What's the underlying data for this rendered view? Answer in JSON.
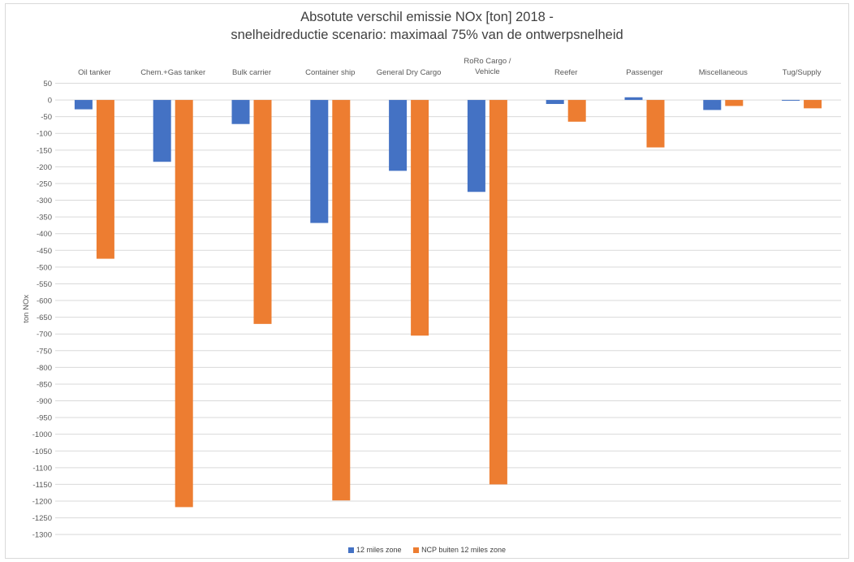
{
  "chart_data": {
    "type": "bar",
    "title_line1": "Absotute verschil emissie NOx [ton] 2018 -",
    "title_line2": "snelheidreductie scenario: maximaal 75% van de ontwerpsnelheid",
    "ylabel": "ton NOx",
    "ylim": [
      -1300,
      50
    ],
    "ytick_step": 50,
    "grid": true,
    "legend_position": "bottom",
    "categories": [
      [
        "Oil tanker"
      ],
      [
        "Chem.+Gas  tanker"
      ],
      [
        "Bulk carrier"
      ],
      [
        "Container ship"
      ],
      [
        "General Dry Cargo"
      ],
      [
        "RoRo Cargo /",
        "Vehicle"
      ],
      [
        "Reefer"
      ],
      [
        "Passenger"
      ],
      [
        "Miscellaneous"
      ],
      [
        "Tug/Supply"
      ]
    ],
    "series": [
      {
        "name": "12 miles zone",
        "color": "#4472C4",
        "values": [
          -28,
          -185,
          -72,
          -368,
          -212,
          -275,
          -12,
          8,
          -30,
          -2
        ]
      },
      {
        "name": "NCP buiten 12 miles zone",
        "color": "#ED7D31",
        "values": [
          -475,
          -1218,
          -670,
          -1198,
          -705,
          -1150,
          -65,
          -142,
          -18,
          -25
        ]
      }
    ]
  }
}
